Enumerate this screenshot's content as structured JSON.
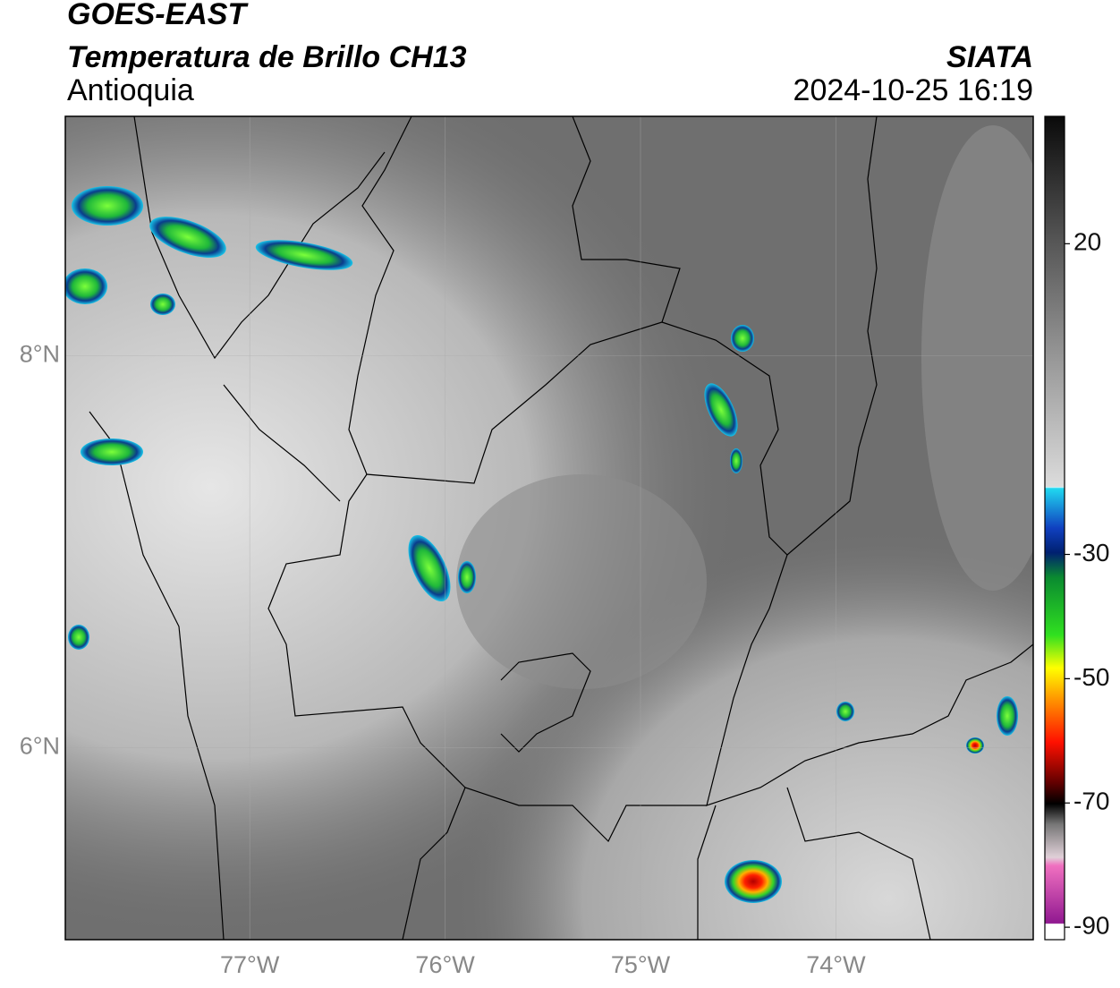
{
  "header": {
    "title": "GOES-EAST",
    "subtitle": "Temperatura de Brillo CH13",
    "region": "Antioquia",
    "agency": "SIATA",
    "datetime": "2024-10-25 16:19"
  },
  "map": {
    "xlim": [
      -77.944,
      -72.99
    ],
    "ylim": [
      5.02,
      9.22
    ],
    "xticks": [
      {
        "value": -77,
        "label": "77°W"
      },
      {
        "value": -76,
        "label": "76°W"
      },
      {
        "value": -75,
        "label": "75°W"
      },
      {
        "value": -74,
        "label": "74°W"
      }
    ],
    "yticks": [
      {
        "value": 8,
        "label": "8°N"
      },
      {
        "value": 6,
        "label": "6°N"
      }
    ],
    "grid": true
  },
  "colorbar": {
    "lim": [
      -92,
      40.5
    ],
    "ticks": [
      20,
      -30,
      -50,
      -70,
      -90
    ]
  }
}
